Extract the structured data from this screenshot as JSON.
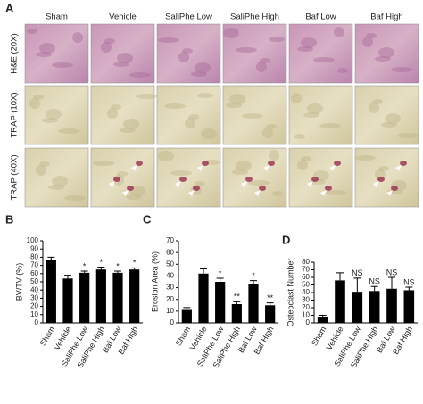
{
  "figure": {
    "panel_label": "A",
    "columns": [
      "Sham",
      "Vehicle",
      "SaliPhe Low",
      "SaliPhe High",
      "Baf Low",
      "Baf High"
    ],
    "rows": [
      "H&E (20X)",
      "TRAP (10X)",
      "TRAP (40X)"
    ]
  },
  "chart_data": [
    {
      "type": "bar",
      "panel": "B",
      "ylabel": "BV/TV (%)",
      "categories": [
        "Sham",
        "Vehicle",
        "SaliPhe Low",
        "SaliPhe High",
        "Baf Low",
        "Baf High"
      ],
      "values": [
        77,
        54,
        61,
        65,
        61,
        65
      ],
      "errors": [
        3,
        4,
        2,
        3,
        2,
        2
      ],
      "annotations": [
        null,
        null,
        "*",
        "*",
        "*",
        "*"
      ],
      "color": "#000000",
      "ylim": [
        0,
        100
      ],
      "yticks": [
        0,
        10,
        20,
        30,
        40,
        50,
        60,
        70,
        80,
        90,
        100
      ]
    },
    {
      "type": "bar",
      "panel": "C",
      "ylabel": "Erosion Area (%)",
      "categories": [
        "Sham",
        "Vehicle",
        "SaliPhe Low",
        "SaliPhe High",
        "Baf Low",
        "Baf High"
      ],
      "values": [
        11,
        42,
        35,
        16,
        33,
        15
      ],
      "errors": [
        2,
        4,
        3,
        2,
        3,
        2
      ],
      "annotations": [
        null,
        null,
        "*",
        "**",
        "*",
        "**"
      ],
      "color": "#000000",
      "ylim": [
        0,
        70
      ],
      "yticks": [
        0,
        10,
        20,
        30,
        40,
        50,
        60,
        70
      ]
    },
    {
      "type": "bar",
      "panel": "D",
      "ylabel": "Osteoclast Number",
      "categories": [
        "Sham",
        "Vehicle",
        "SaliPhe Low",
        "SaliPhe High",
        "Baf Low",
        "Baf High"
      ],
      "values": [
        8,
        56,
        41,
        42,
        45,
        43
      ],
      "errors": [
        2,
        10,
        18,
        6,
        15,
        4
      ],
      "annotations": [
        null,
        null,
        "NS",
        "NS",
        "NS",
        "NS"
      ],
      "color": "#000000",
      "ylim": [
        0,
        80
      ],
      "yticks": [
        0,
        10,
        20,
        30,
        40,
        50,
        60,
        70,
        80
      ]
    }
  ]
}
